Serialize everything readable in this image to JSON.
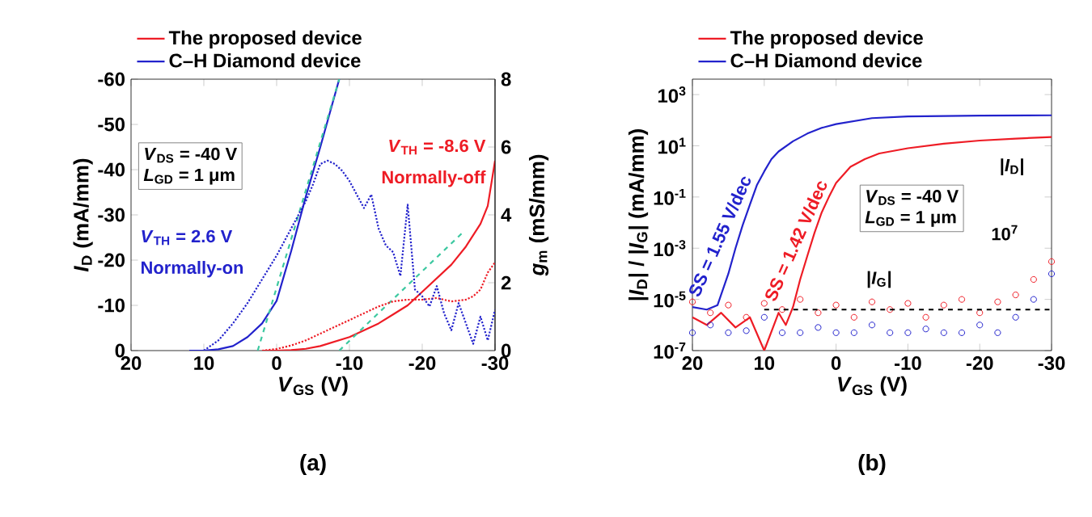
{
  "chart_data": [
    {
      "type": "line",
      "xlabel": "*V*$_{GS}$ (V)",
      "ylabel": "*I*$_{D}$ (mA/mm)",
      "y2label": "*g*$_{m}$ (mS/mm)",
      "xlim": [
        20,
        -30
      ],
      "xticks": [
        20,
        10,
        0,
        -10,
        -20,
        -30
      ],
      "ylim": [
        0,
        -60
      ],
      "yticks": [
        0,
        -10,
        -20,
        -30,
        -40,
        -50,
        -60
      ],
      "y2lim": [
        0,
        8
      ],
      "y2ticks": [
        0,
        2,
        4,
        6,
        8
      ],
      "legend": "top",
      "line_style": "solid",
      "series": [
        {
          "name": "The proposed device",
          "color": "#ee1c25",
          "x": [
            2,
            0,
            -2,
            -4,
            -6,
            -8,
            -10,
            -12,
            -14,
            -16,
            -18,
            -20,
            -22,
            -24,
            -26,
            -28,
            -29,
            -30
          ],
          "values": [
            0,
            0,
            -0.1,
            -0.4,
            -1,
            -2,
            -3,
            -4.5,
            -6,
            -8,
            -10,
            -13,
            -16,
            -19,
            -23,
            -28,
            -32,
            -42
          ]
        },
        {
          "name": "C–H Diamond device",
          "color": "#2222cc",
          "x": [
            12,
            10,
            8,
            6,
            4,
            2,
            0,
            -2,
            -4,
            -6,
            -8.6
          ],
          "values": [
            0,
            0,
            -0.3,
            -1,
            -3,
            -6,
            -11,
            -22,
            -34,
            -45,
            -60
          ]
        },
        {
          "color": "#ee1c25",
          "axis": "y2",
          "line_style": "dotted",
          "x": [
            2,
            0,
            -2,
            -4,
            -6,
            -8,
            -10,
            -12,
            -14,
            -16,
            -18,
            -20,
            -22,
            -24,
            -26,
            -27,
            -28,
            -29,
            -30
          ],
          "values": [
            0,
            0.05,
            0.15,
            0.3,
            0.5,
            0.7,
            0.9,
            1.1,
            1.3,
            1.45,
            1.5,
            1.5,
            1.55,
            1.45,
            1.5,
            1.6,
            1.8,
            2.3,
            2.6
          ]
        },
        {
          "color": "#2222cc",
          "axis": "y2",
          "line_style": "dotted",
          "x": [
            10,
            8,
            6,
            4,
            2,
            0,
            -2,
            -4,
            -5,
            -6,
            -7,
            -8,
            -9,
            -10,
            -11,
            -12,
            -13,
            -14,
            -15,
            -16,
            -17,
            -18,
            -19,
            -20,
            -21,
            -22,
            -23,
            -24,
            -25,
            -26,
            -27,
            -28,
            -29,
            -30
          ],
          "values": [
            0,
            0.3,
            0.8,
            1.4,
            2.1,
            2.8,
            3.6,
            4.4,
            4.9,
            5.5,
            5.6,
            5.5,
            5.3,
            5.0,
            4.6,
            4.2,
            4.6,
            3.6,
            3.1,
            2.9,
            2.2,
            4.3,
            1.8,
            1.6,
            1.3,
            1.9,
            1.1,
            0.6,
            1.4,
            0.8,
            0.2,
            1.0,
            0.3,
            1.2
          ]
        },
        {
          "color": "#3cc8a0",
          "line_style": "dashed",
          "x": [
            2.6,
            -8.6
          ],
          "values": [
            0,
            -60
          ]
        },
        {
          "color": "#3cc8a0",
          "line_style": "dashed",
          "x": [
            -8.6,
            -25.5
          ],
          "values": [
            0,
            -26
          ]
        }
      ],
      "annotations": [
        "*V*$_{DS}$ = -40 V",
        "*L*$_{GD}$ = 1 μm",
        "*V*$_{TH}$ = 2.6 V",
        "Normally-on",
        "*V*$_{TH}$ = -8.6 V",
        "Normally-off",
        "(a)"
      ]
    },
    {
      "type": "line",
      "log": "y",
      "xlabel": "*V*$_{GS}$ (V)",
      "ylabel": "|*I*$_{D}$| / |*I*$_{G}$| (mA/mm)",
      "xlim": [
        20,
        -30
      ],
      "xticks": [
        20,
        10,
        0,
        -10,
        -20,
        -30
      ],
      "ylim": [
        1e-07,
        4000
      ],
      "yticks": [
        {
          "value": 1e-07,
          "label": "10$^{-7}$"
        },
        {
          "value": 1e-05,
          "label": "10$^{-5}$"
        },
        {
          "value": 0.001,
          "label": "10$^{-3}$"
        },
        {
          "value": 0.1,
          "label": "10$^{-1}$"
        },
        {
          "value": 10,
          "label": "10$^{1}$"
        },
        {
          "value": 1000,
          "label": "10$^{3}$"
        }
      ],
      "legend": "top",
      "line_style": "solid",
      "series": [
        {
          "name": "The proposed device",
          "color": "#ee1c25",
          "x": [
            20,
            18,
            16,
            14,
            12,
            10,
            8,
            7,
            6,
            5,
            4,
            3,
            2,
            1,
            0,
            -2,
            -4,
            -6,
            -10,
            -15,
            -20,
            -25,
            -30
          ],
          "values": [
            2e-06,
            1e-06,
            3e-06,
            8e-07,
            2e-06,
            1e-07,
            3e-06,
            1e-06,
            5e-06,
            6e-05,
            0.0005,
            0.004,
            0.025,
            0.1,
            0.35,
            1.5,
            3,
            5,
            8,
            12,
            16,
            19,
            22
          ]
        },
        {
          "name": "C–H Diamond device",
          "color": "#2222cc",
          "x": [
            20,
            18,
            16.5,
            15,
            14,
            13,
            12,
            11,
            10,
            9,
            8,
            6,
            4,
            2,
            0,
            -5,
            -10,
            -20,
            -30
          ],
          "values": [
            5e-06,
            4e-06,
            6e-06,
            0.0001,
            0.001,
            0.008,
            0.05,
            0.3,
            1,
            3,
            6,
            15,
            30,
            50,
            70,
            120,
            140,
            150,
            155
          ]
        },
        {
          "type": "scatter",
          "marker": "circle",
          "color": "#ee1c25",
          "x": [
            20,
            17.5,
            15,
            12.5,
            10,
            7.5,
            5,
            2.5,
            0,
            -2.5,
            -5,
            -7.5,
            -10,
            -12.5,
            -15,
            -17.5,
            -20,
            -22.5,
            -25,
            -27.5,
            -30
          ],
          "values": [
            8e-06,
            3e-06,
            6e-06,
            2e-06,
            7e-06,
            4e-06,
            1e-05,
            3e-06,
            6e-06,
            2e-06,
            8e-06,
            4e-06,
            7e-06,
            2e-06,
            6e-06,
            1e-05,
            3e-06,
            8e-06,
            1.5e-05,
            6e-05,
            0.0003
          ]
        },
        {
          "type": "scatter",
          "marker": "circle",
          "color": "#2222cc",
          "x": [
            20,
            17.5,
            15,
            12.5,
            10,
            7.5,
            5,
            2.5,
            0,
            -2.5,
            -5,
            -7.5,
            -10,
            -12.5,
            -15,
            -17.5,
            -20,
            -22.5,
            -25,
            -27.5,
            -30
          ],
          "values": [
            5e-07,
            1e-06,
            5e-07,
            6e-07,
            2e-06,
            5e-07,
            5e-07,
            8e-07,
            5e-07,
            5e-07,
            1e-06,
            5e-07,
            5e-07,
            7e-07,
            5e-07,
            5e-07,
            1e-06,
            5e-07,
            2e-06,
            1e-05,
            0.0001
          ]
        },
        {
          "color": "#000000",
          "line_style": "dashed",
          "x": [
            10,
            -30
          ],
          "values": [
            4e-06,
            4e-06
          ]
        }
      ],
      "annotations": [
        "SS = 1.55 V/dec",
        "SS = 1.42 V/dec",
        "*V*$_{DS}$ = -40 V",
        "*L*$_{GD}$ = 1 μm",
        "10$^{7}$",
        "|*I*$_{D}$|",
        "|*I*$_{G}$|",
        "(b)"
      ]
    }
  ]
}
